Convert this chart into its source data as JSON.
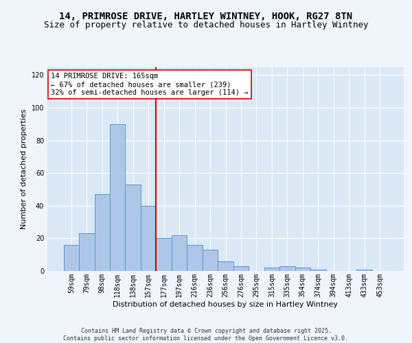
{
  "title_line1": "14, PRIMROSE DRIVE, HARTLEY WINTNEY, HOOK, RG27 8TN",
  "title_line2": "Size of property relative to detached houses in Hartley Wintney",
  "xlabel": "Distribution of detached houses by size in Hartley Wintney",
  "ylabel": "Number of detached properties",
  "categories": [
    "59sqm",
    "79sqm",
    "98sqm",
    "118sqm",
    "138sqm",
    "157sqm",
    "177sqm",
    "197sqm",
    "216sqm",
    "236sqm",
    "256sqm",
    "276sqm",
    "295sqm",
    "315sqm",
    "335sqm",
    "354sqm",
    "374sqm",
    "394sqm",
    "413sqm",
    "433sqm",
    "453sqm"
  ],
  "values": [
    16,
    23,
    47,
    90,
    53,
    40,
    20,
    22,
    16,
    13,
    6,
    3,
    0,
    2,
    3,
    2,
    1,
    0,
    0,
    1,
    0
  ],
  "bar_color": "#aec6e8",
  "bar_edge_color": "#5599cc",
  "bg_color": "#dce8f5",
  "fig_color": "#f0f4fb",
  "vline_x": 5.5,
  "vline_color": "#cc0000",
  "annotation_text": "14 PRIMROSE DRIVE: 165sqm\n← 67% of detached houses are smaller (239)\n32% of semi-detached houses are larger (114) →",
  "annotation_box_color": "#ffffff",
  "annotation_box_edge": "#cc0000",
  "ylim": [
    0,
    125
  ],
  "yticks": [
    0,
    20,
    40,
    60,
    80,
    100,
    120
  ],
  "footer": "Contains HM Land Registry data © Crown copyright and database right 2025.\nContains public sector information licensed under the Open Government Licence v3.0.",
  "title_fontsize": 10,
  "subtitle_fontsize": 9,
  "axis_label_fontsize": 8,
  "tick_fontsize": 7,
  "annotation_fontsize": 7.5,
  "footer_fontsize": 6
}
